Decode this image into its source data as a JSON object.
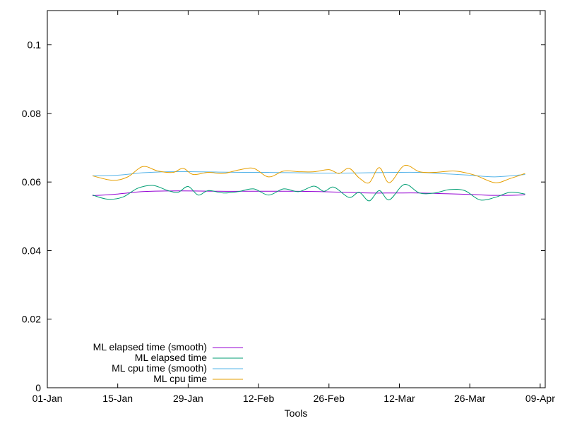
{
  "chart_data": {
    "type": "line",
    "xlabel": "Tools",
    "ylabel": "",
    "ylim": [
      0,
      0.11
    ],
    "xlim": [
      "2024-01-01",
      "2024-04-09"
    ],
    "grid": false,
    "legend_position": "bottom-left",
    "x_ticks": [
      "01-Jan",
      "15-Jan",
      "29-Jan",
      "12-Feb",
      "26-Feb",
      "12-Mar",
      "26-Mar",
      "09-Apr"
    ],
    "y_ticks": [
      "0",
      "0.02",
      "0.04",
      "0.06",
      "0.08",
      "0.1"
    ],
    "series": [
      {
        "name": "ML elapsed time (smooth)",
        "color": "#9400d3",
        "x": [
          "2024-01-10",
          "2024-01-15",
          "2024-01-20",
          "2024-01-25",
          "2024-01-30",
          "2024-02-04",
          "2024-02-09",
          "2024-02-14",
          "2024-02-19",
          "2024-02-24",
          "2024-02-29",
          "2024-03-05",
          "2024-03-10",
          "2024-03-15",
          "2024-03-20",
          "2024-03-25",
          "2024-03-30",
          "2024-04-04",
          "2024-04-05"
        ],
        "y": [
          0.056,
          0.0565,
          0.0572,
          0.0574,
          0.0574,
          0.0573,
          0.0573,
          0.0573,
          0.0573,
          0.0572,
          0.057,
          0.0568,
          0.0568,
          0.0568,
          0.0566,
          0.0564,
          0.0561,
          0.0562,
          0.0563
        ]
      },
      {
        "name": "ML elapsed time",
        "color": "#009e73",
        "x": [
          "2024-01-10",
          "2024-01-13",
          "2024-01-16",
          "2024-01-19",
          "2024-01-22",
          "2024-01-25",
          "2024-01-27",
          "2024-01-29",
          "2024-01-31",
          "2024-02-02",
          "2024-02-05",
          "2024-02-08",
          "2024-02-11",
          "2024-02-14",
          "2024-02-17",
          "2024-02-20",
          "2024-02-23",
          "2024-02-25",
          "2024-02-27",
          "2024-03-01",
          "2024-03-03",
          "2024-03-05",
          "2024-03-07",
          "2024-03-09",
          "2024-03-12",
          "2024-03-15",
          "2024-03-18",
          "2024-03-21",
          "2024-03-24",
          "2024-03-27",
          "2024-03-30",
          "2024-04-02",
          "2024-04-05"
        ],
        "y": [
          0.0562,
          0.055,
          0.0556,
          0.0582,
          0.059,
          0.0575,
          0.057,
          0.0587,
          0.0562,
          0.0575,
          0.0568,
          0.0572,
          0.058,
          0.0562,
          0.058,
          0.0572,
          0.0588,
          0.0573,
          0.0585,
          0.0555,
          0.057,
          0.0545,
          0.0575,
          0.0548,
          0.0593,
          0.0568,
          0.0568,
          0.0578,
          0.0575,
          0.0548,
          0.0555,
          0.057,
          0.0565
        ]
      },
      {
        "name": "ML cpu time (smooth)",
        "color": "#56b4e9",
        "x": [
          "2024-01-10",
          "2024-01-15",
          "2024-01-20",
          "2024-01-25",
          "2024-01-30",
          "2024-02-04",
          "2024-02-09",
          "2024-02-14",
          "2024-02-19",
          "2024-02-24",
          "2024-02-29",
          "2024-03-05",
          "2024-03-10",
          "2024-03-15",
          "2024-03-20",
          "2024-03-25",
          "2024-03-30",
          "2024-04-05"
        ],
        "y": [
          0.0618,
          0.062,
          0.0627,
          0.063,
          0.063,
          0.0629,
          0.0628,
          0.0628,
          0.0627,
          0.0626,
          0.0626,
          0.0627,
          0.0628,
          0.0628,
          0.0624,
          0.062,
          0.0615,
          0.0622
        ]
      },
      {
        "name": "ML cpu time",
        "color": "#e69f00",
        "x": [
          "2024-01-10",
          "2024-01-14",
          "2024-01-17",
          "2024-01-20",
          "2024-01-23",
          "2024-01-26",
          "2024-01-28",
          "2024-01-30",
          "2024-02-02",
          "2024-02-05",
          "2024-02-08",
          "2024-02-11",
          "2024-02-14",
          "2024-02-17",
          "2024-02-20",
          "2024-02-23",
          "2024-02-26",
          "2024-02-28",
          "2024-03-01",
          "2024-03-03",
          "2024-03-05",
          "2024-03-07",
          "2024-03-09",
          "2024-03-12",
          "2024-03-15",
          "2024-03-18",
          "2024-03-22",
          "2024-03-26",
          "2024-03-30",
          "2024-04-02",
          "2024-04-05"
        ],
        "y": [
          0.0618,
          0.0605,
          0.0615,
          0.0645,
          0.0632,
          0.0628,
          0.064,
          0.0622,
          0.0628,
          0.0625,
          0.0635,
          0.064,
          0.0615,
          0.0632,
          0.063,
          0.063,
          0.0636,
          0.0625,
          0.064,
          0.0612,
          0.0598,
          0.0642,
          0.0598,
          0.0648,
          0.063,
          0.0628,
          0.0632,
          0.062,
          0.0598,
          0.061,
          0.0625
        ]
      }
    ]
  }
}
